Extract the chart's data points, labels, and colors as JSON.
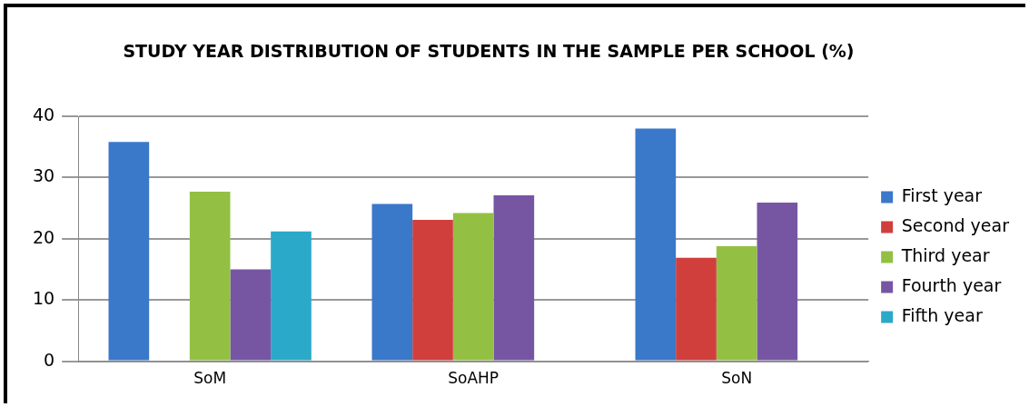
{
  "chart_data": {
    "type": "bar",
    "title": "STUDY YEAR DISTRIBUTION OF STUDENTS IN THE SAMPLE PER SCHOOL  (%)",
    "categories": [
      "SoM",
      "SoAHP",
      "SoN"
    ],
    "series": [
      {
        "name": "First year",
        "color": "#3a78c9",
        "values": [
          35.8,
          25.7,
          38.0
        ]
      },
      {
        "name": "Second year",
        "color": "#d03f3c",
        "values": [
          null,
          23.1,
          16.9
        ]
      },
      {
        "name": "Third year",
        "color": "#93c043",
        "values": [
          27.7,
          24.2,
          18.8
        ]
      },
      {
        "name": "Fourth year",
        "color": "#7656a3",
        "values": [
          15.0,
          27.1,
          25.9
        ]
      },
      {
        "name": "Fifth year",
        "color": "#2ba9c9",
        "values": [
          21.2,
          null,
          null
        ]
      }
    ],
    "ylim": [
      0,
      40
    ],
    "yticks": [
      0,
      10,
      20,
      30,
      40
    ],
    "grid": "y",
    "legend": "right"
  }
}
